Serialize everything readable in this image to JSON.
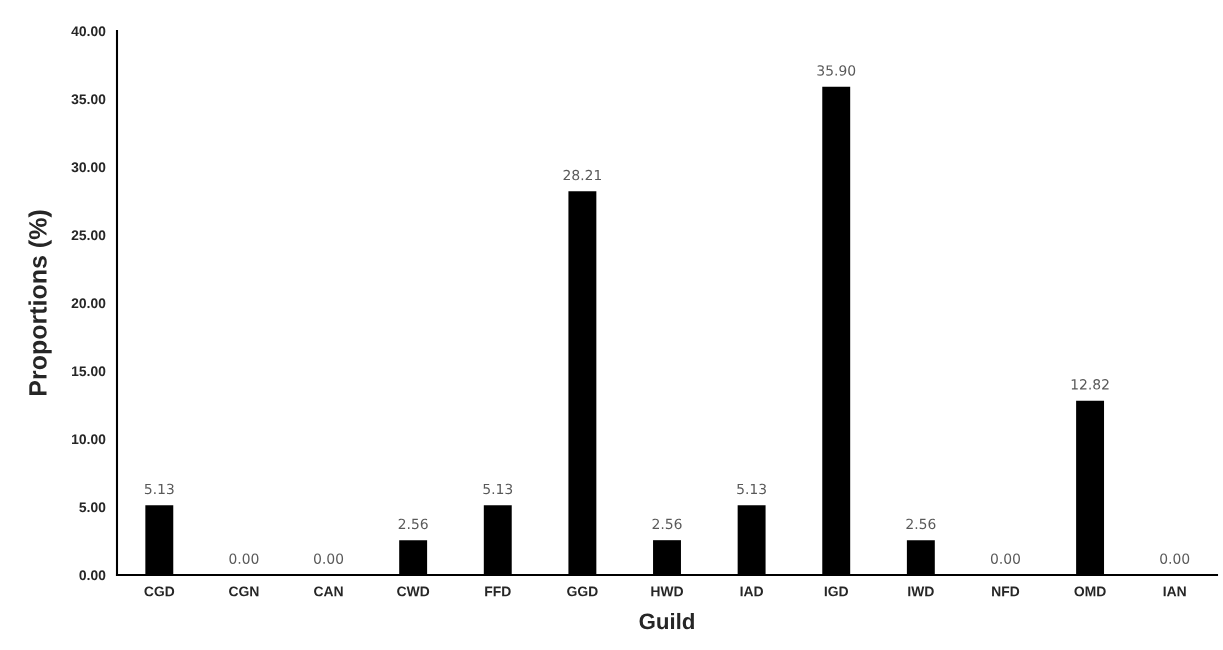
{
  "chart_data": {
    "type": "bar",
    "xlabel": "Guild",
    "ylabel": "Proportions (%)",
    "categories": [
      "CGD",
      "CGN",
      "CAN",
      "CWD",
      "FFD",
      "GGD",
      "HWD",
      "IAD",
      "IGD",
      "IWD",
      "NFD",
      "OMD",
      "IAN"
    ],
    "values": [
      5.13,
      0.0,
      0.0,
      2.56,
      5.13,
      28.21,
      2.56,
      5.13,
      35.9,
      2.56,
      0.0,
      12.82,
      0.0
    ],
    "value_labels": [
      "5.13",
      "0.00",
      "0.00",
      "2.56",
      "5.13",
      "28.21",
      "2.56",
      "5.13",
      "35.90",
      "2.56",
      "0.00",
      "12.82",
      "0.00"
    ],
    "color": "#000000",
    "ylim": [
      0,
      40
    ],
    "yticks": [
      {
        "value": 0,
        "label": "0.00"
      },
      {
        "value": 5,
        "label": "5.00"
      },
      {
        "value": 10,
        "label": "10.00"
      },
      {
        "value": 15,
        "label": "15.00"
      },
      {
        "value": 20,
        "label": "20.00"
      },
      {
        "value": 25,
        "label": "25.00"
      },
      {
        "value": 30,
        "label": "30.00"
      },
      {
        "value": 35,
        "label": "35.00"
      },
      {
        "value": 40,
        "label": "40.00"
      }
    ],
    "grid": false
  }
}
